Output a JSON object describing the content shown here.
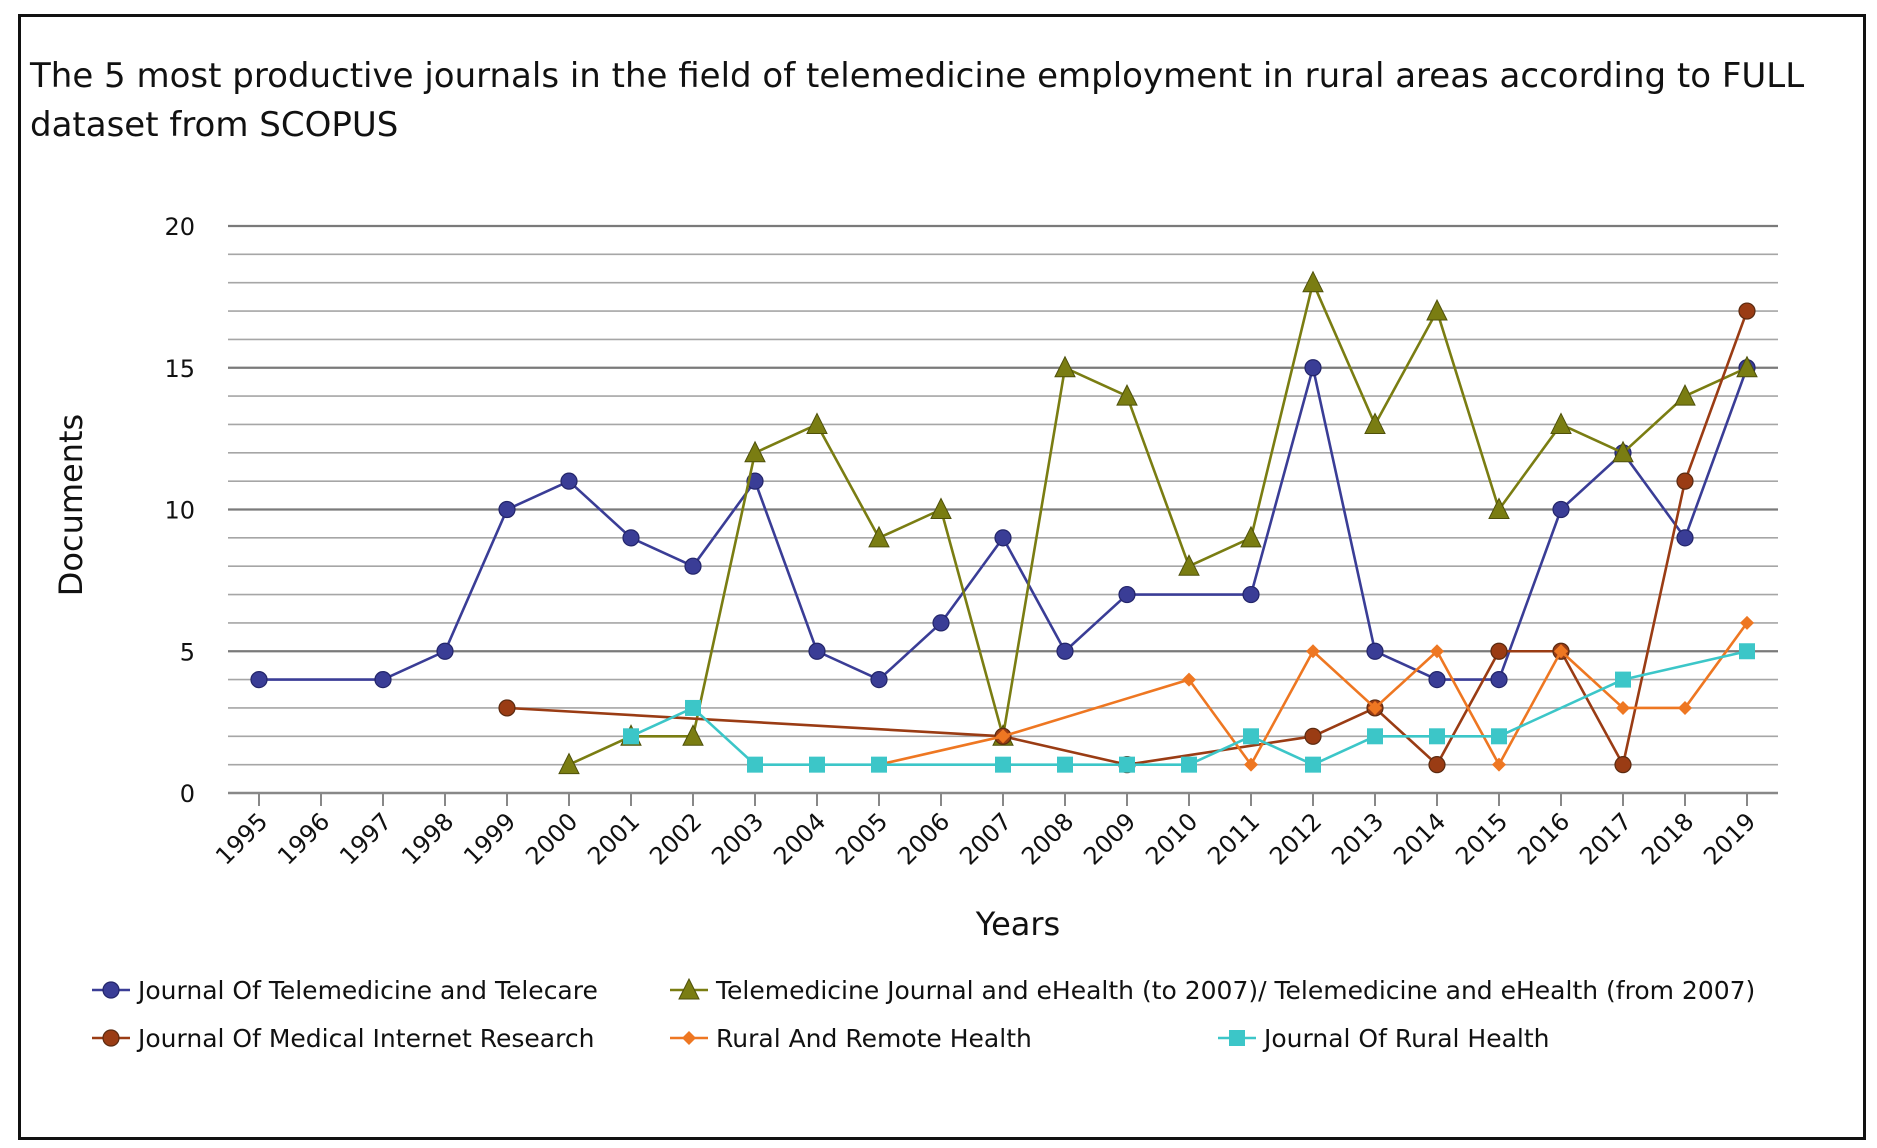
{
  "chart_data": {
    "type": "line",
    "title": "The 5 most productive journals in the field of telemedicine employment in rural areas according to FULL dataset from SCOPUS",
    "xlabel": "Years",
    "ylabel": "Documents",
    "ylim": [
      0,
      20
    ],
    "yticks": [
      "0",
      "5",
      "10",
      "15",
      "20"
    ],
    "categories": [
      "1995",
      "1996",
      "1997",
      "1998",
      "1999",
      "2000",
      "2001",
      "2002",
      "2003",
      "2004",
      "2005",
      "2006",
      "2007",
      "2008",
      "2009",
      "2010",
      "2011",
      "2012",
      "2013",
      "2014",
      "2015",
      "2016",
      "2017",
      "2018",
      "2019"
    ],
    "grid": true,
    "legend_position": "bottom",
    "series": [
      {
        "name": "Journal Of Telemedicine and Telecare",
        "color": "#3a3d96",
        "marker": "circle",
        "values": [
          4,
          null,
          4,
          5,
          10,
          11,
          9,
          8,
          11,
          5,
          4,
          6,
          9,
          5,
          7,
          null,
          7,
          15,
          5,
          4,
          4,
          10,
          12,
          9,
          15
        ]
      },
      {
        "name": "Telemedicine Journal and eHealth (to 2007)/ Telemedicine and eHealth (from 2007)",
        "color": "#7a7d12",
        "marker": "triangle",
        "values": [
          null,
          null,
          null,
          null,
          null,
          1,
          2,
          2,
          12,
          13,
          9,
          10,
          2,
          15,
          14,
          8,
          9,
          18,
          13,
          17,
          10,
          13,
          12,
          14,
          15
        ]
      },
      {
        "name": "Journal Of Medical Internet Research",
        "color": "#9a3c14",
        "marker": "circle",
        "values": [
          null,
          null,
          null,
          null,
          3,
          null,
          null,
          null,
          null,
          null,
          null,
          null,
          2,
          null,
          1,
          null,
          null,
          2,
          3,
          1,
          5,
          5,
          1,
          11,
          17
        ]
      },
      {
        "name": "Rural And Remote Health",
        "color": "#ee7722",
        "marker": "diamond",
        "values": [
          null,
          null,
          null,
          null,
          null,
          null,
          null,
          null,
          null,
          null,
          1,
          null,
          2,
          null,
          null,
          4,
          1,
          5,
          3,
          5,
          1,
          5,
          3,
          3,
          6
        ]
      },
      {
        "name": "Journal Of Rural Health",
        "color": "#3cc6c8",
        "marker": "square",
        "values": [
          null,
          null,
          null,
          null,
          null,
          null,
          2,
          3,
          1,
          1,
          1,
          null,
          1,
          1,
          1,
          1,
          2,
          1,
          2,
          2,
          2,
          null,
          4,
          null,
          5
        ]
      }
    ]
  }
}
